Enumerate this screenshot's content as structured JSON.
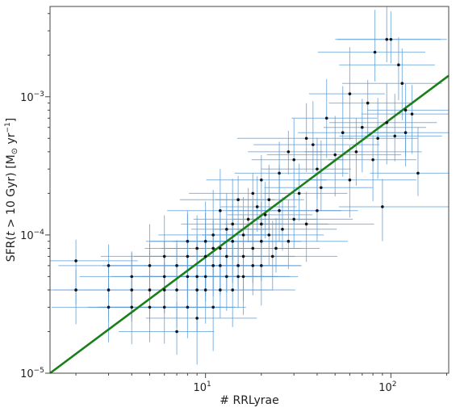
{
  "chart_data": {
    "type": "scatter",
    "xlabel": "# RRLyrae",
    "ylabel_parts": [
      "SFR(",
      "t",
      " > 10 Gyr) [M",
      "⊙",
      " yr",
      "−1",
      "]"
    ],
    "xscale": "log",
    "yscale": "log",
    "xlim": [
      1.45,
      205
    ],
    "ylim": [
      1e-05,
      0.0045
    ],
    "x_ticks": [
      {
        "value": 10,
        "base": "10",
        "exp": "1"
      },
      {
        "value": 100,
        "base": "10",
        "exp": "2"
      }
    ],
    "y_ticks": [
      {
        "value": 1e-05,
        "base": "10",
        "exp": "−5"
      },
      {
        "value": 0.0001,
        "base": "10",
        "exp": "−4"
      },
      {
        "value": 0.001,
        "base": "10",
        "exp": "−3"
      }
    ],
    "fit_line": {
      "color": "#1a7f1a",
      "points": [
        [
          1.45,
          1e-05
        ],
        [
          205,
          0.00142
        ]
      ]
    },
    "point_color": "#111111",
    "errorbar_color": "#5b9bd5",
    "points": [
      [
        100,
        0.0026
      ],
      [
        95,
        0.0026
      ],
      [
        82,
        0.0021
      ],
      [
        110,
        0.0017
      ],
      [
        115,
        0.00125
      ],
      [
        60,
        0.00105
      ],
      [
        120,
        0.0008
      ],
      [
        130,
        0.00075
      ],
      [
        120,
        0.00055
      ],
      [
        105,
        0.00052
      ],
      [
        140,
        0.00028
      ],
      [
        90,
        0.00016
      ],
      [
        95,
        0.00065
      ],
      [
        75,
        0.0009
      ],
      [
        45,
        0.0007
      ],
      [
        35,
        0.0005
      ],
      [
        65,
        0.0004
      ],
      [
        80,
        0.00035
      ],
      [
        55,
        0.00055
      ],
      [
        50,
        0.00038
      ],
      [
        40,
        0.0003
      ],
      [
        30,
        0.00035
      ],
      [
        25,
        0.00028
      ],
      [
        42,
        0.00022
      ],
      [
        60,
        0.00025
      ],
      [
        70,
        0.0006
      ],
      [
        85,
        0.0005
      ],
      [
        38,
        0.00045
      ],
      [
        28,
        0.0004
      ],
      [
        20,
        0.00025
      ],
      [
        22,
        0.00018
      ],
      [
        32,
        0.0002
      ],
      [
        18,
        0.0002
      ],
      [
        15,
        0.00018
      ],
      [
        12,
        0.00015
      ],
      [
        25,
        0.00015
      ],
      [
        30,
        0.00013
      ],
      [
        20,
        0.00012
      ],
      [
        16,
        0.0001
      ],
      [
        14,
        0.00012
      ],
      [
        11,
        0.0001
      ],
      [
        10,
        9e-05
      ],
      [
        9,
        8e-05
      ],
      [
        8,
        7e-05
      ],
      [
        10,
        7e-05
      ],
      [
        12,
        8e-05
      ],
      [
        14,
        9e-05
      ],
      [
        16,
        7e-05
      ],
      [
        18,
        8e-05
      ],
      [
        20,
        9e-05
      ],
      [
        22,
        0.0001
      ],
      [
        26,
        0.00011
      ],
      [
        28,
        9e-05
      ],
      [
        35,
        0.00012
      ],
      [
        40,
        0.00015
      ],
      [
        7,
        6e-05
      ],
      [
        6,
        5e-05
      ],
      [
        5,
        6e-05
      ],
      [
        4,
        5e-05
      ],
      [
        3,
        6e-05
      ],
      [
        2,
        6.5e-05
      ],
      [
        3,
        4e-05
      ],
      [
        4,
        4e-05
      ],
      [
        5,
        4e-05
      ],
      [
        6,
        4e-05
      ],
      [
        7,
        4e-05
      ],
      [
        8,
        5e-05
      ],
      [
        9,
        5e-05
      ],
      [
        10,
        5e-05
      ],
      [
        11,
        6e-05
      ],
      [
        12,
        6e-05
      ],
      [
        13,
        7e-05
      ],
      [
        15,
        6e-05
      ],
      [
        9,
        4e-05
      ],
      [
        10,
        4e-05
      ],
      [
        12,
        4e-05
      ],
      [
        8,
        3e-05
      ],
      [
        6,
        3e-05
      ],
      [
        5,
        3e-05
      ],
      [
        4,
        3e-05
      ],
      [
        3,
        3e-05
      ],
      [
        2,
        4e-05
      ],
      [
        7,
        2e-05
      ],
      [
        9,
        2.5e-05
      ],
      [
        11,
        3e-05
      ],
      [
        14,
        4e-05
      ],
      [
        16,
        5e-05
      ],
      [
        18,
        6e-05
      ],
      [
        20,
        6e-05
      ],
      [
        24,
        8e-05
      ],
      [
        13,
        0.00011
      ],
      [
        17,
        0.00013
      ],
      [
        19,
        0.00016
      ],
      [
        21,
        0.00014
      ],
      [
        23,
        7e-05
      ],
      [
        15,
        5e-05
      ],
      [
        11,
        8e-05
      ],
      [
        13,
        5e-05
      ],
      [
        8,
        9e-05
      ],
      [
        6,
        7e-05
      ]
    ]
  }
}
